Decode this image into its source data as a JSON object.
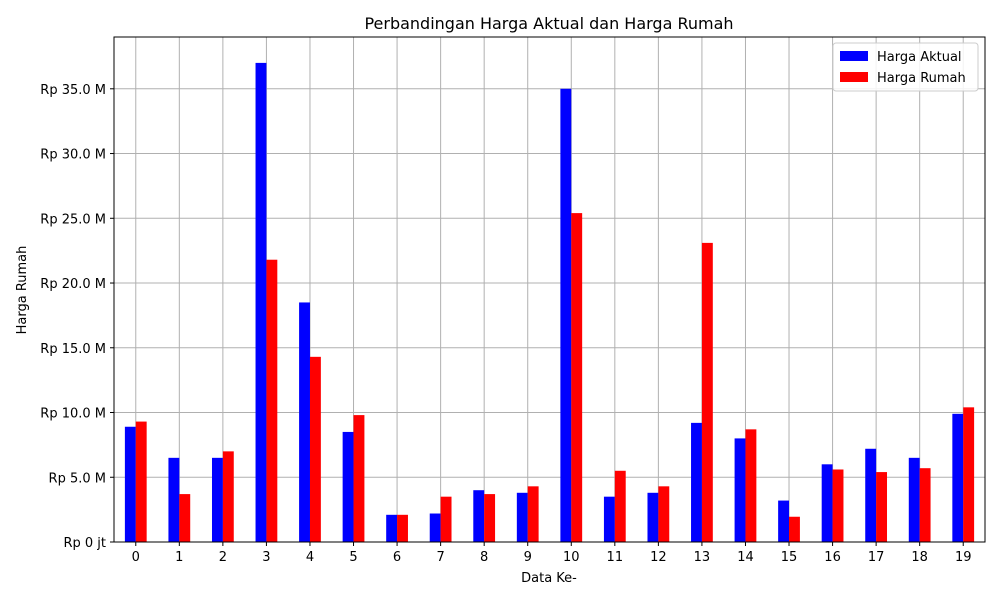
{
  "chart_data": {
    "type": "bar",
    "title": "Perbandingan Harga Aktual dan Harga Rumah",
    "xlabel": "Data Ke-",
    "ylabel": "Harga Rumah",
    "categories": [
      "0",
      "1",
      "2",
      "3",
      "4",
      "5",
      "6",
      "7",
      "8",
      "9",
      "10",
      "11",
      "12",
      "13",
      "14",
      "15",
      "16",
      "17",
      "18",
      "19"
    ],
    "ylim": [
      0,
      39000000000
    ],
    "yticks": [
      0,
      5000000000,
      10000000000,
      15000000000,
      20000000000,
      25000000000,
      30000000000,
      35000000000
    ],
    "ytick_labels": [
      "Rp 0 jt",
      "Rp 5.0 M",
      "Rp 10.0 M",
      "Rp 15.0 M",
      "Rp 20.0 M",
      "Rp 25.0 M",
      "Rp 30.0 M",
      "Rp 35.0 M"
    ],
    "grid": true,
    "legend_position": "top-right",
    "series": [
      {
        "name": "Harga Aktual",
        "color": "#0000ff",
        "values": [
          8900000000,
          6500000000,
          6500000000,
          37000000000,
          18500000000,
          8500000000,
          2100000000,
          2200000000,
          4000000000,
          3800000000,
          35000000000,
          3500000000,
          3800000000,
          9200000000,
          8000000000,
          3200000000,
          6000000000,
          7200000000,
          6500000000,
          9900000000
        ]
      },
      {
        "name": "Harga Rumah",
        "color": "#ff0000",
        "values": [
          9300000000,
          3700000000,
          7000000000,
          21800000000,
          14300000000,
          9800000000,
          2100000000,
          3500000000,
          3700000000,
          4300000000,
          25400000000,
          5500000000,
          4300000000,
          23100000000,
          8700000000,
          1950000000,
          5600000000,
          5400000000,
          5700000000,
          10400000000
        ]
      }
    ]
  }
}
